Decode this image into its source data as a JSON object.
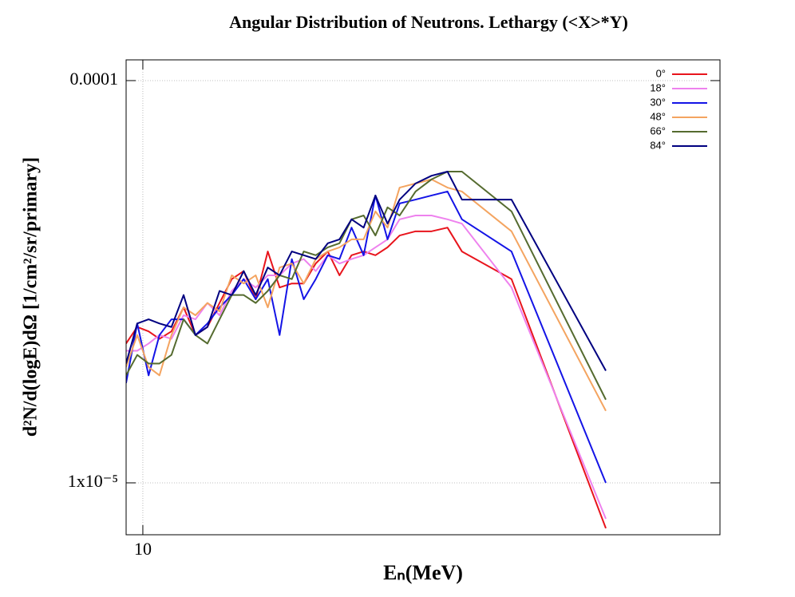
{
  "chart_data": {
    "type": "line",
    "title": "Angular Distribution of Neutrons. Lethargy (<X>*Y)",
    "xlabel": "Eₙ(MeV)",
    "ylabel": "d²N/d(logE)dΩ [1/cm²/sr/primary]",
    "xscale": "log",
    "yscale": "log",
    "grid": true,
    "legend": "upper right",
    "xlim": [
      9.66,
      33.0
    ],
    "ylim": [
      7.43e-06,
      0.0001126
    ],
    "xticks": [
      10
    ],
    "yticks": [
      {
        "value": 1e-05,
        "label": "1x10⁻⁵"
      },
      {
        "value": 0.0001,
        "label": "0.0001"
      }
    ],
    "x": [
      9.659,
      9.885,
      10.12,
      10.35,
      10.61,
      10.88,
      11.15,
      11.43,
      11.72,
      12.02,
      12.32,
      12.63,
      12.95,
      13.27,
      13.61,
      13.95,
      14.3,
      14.66,
      15.02,
      15.4,
      15.79,
      16.18,
      16.59,
      17.01,
      17.58,
      18.17,
      18.78,
      19.35,
      21.44,
      26.06
    ],
    "series": [
      {
        "name": "0°",
        "color": "#e8141c",
        "values": [
          2.22e-05,
          2.44e-05,
          2.38e-05,
          2.28e-05,
          2.38e-05,
          2.73e-05,
          2.33e-05,
          2.44e-05,
          2.8e-05,
          3.21e-05,
          3.36e-05,
          2.86e-05,
          3.76e-05,
          3.06e-05,
          3.13e-05,
          3.13e-05,
          3.51e-05,
          3.76e-05,
          3.28e-05,
          3.68e-05,
          3.76e-05,
          3.68e-05,
          3.85e-05,
          4.12e-05,
          4.22e-05,
          4.22e-05,
          4.31e-05,
          3.76e-05,
          3.21e-05,
          7.71e-06
        ]
      },
      {
        "name": "18°",
        "color": "#ee82ee",
        "values": [
          2.13e-05,
          2.13e-05,
          2.22e-05,
          2.33e-05,
          2.28e-05,
          2.61e-05,
          2.55e-05,
          2.8e-05,
          2.61e-05,
          3e-05,
          3.21e-05,
          3.06e-05,
          3.28e-05,
          3.28e-05,
          3.51e-05,
          3.6e-05,
          3.36e-05,
          3.68e-05,
          3.51e-05,
          3.6e-05,
          3.68e-05,
          3.85e-05,
          4.03e-05,
          4.52e-05,
          4.62e-05,
          4.62e-05,
          4.52e-05,
          4.41e-05,
          3.06e-05,
          8.14e-06
        ]
      },
      {
        "name": "30°",
        "color": "#1414e6",
        "values": [
          1.77e-05,
          2.49e-05,
          1.85e-05,
          2.33e-05,
          2.55e-05,
          2.55e-05,
          2.33e-05,
          2.49e-05,
          2.73e-05,
          2.93e-05,
          3.21e-05,
          2.86e-05,
          3.21e-05,
          2.33e-05,
          3.6e-05,
          2.86e-05,
          3.21e-05,
          3.68e-05,
          3.6e-05,
          4.31e-05,
          3.68e-05,
          5.18e-05,
          4.03e-05,
          4.95e-05,
          5.06e-05,
          5.18e-05,
          5.3e-05,
          4.52e-05,
          3.76e-05,
          1e-05
        ]
      },
      {
        "name": "48°",
        "color": "#f4a460",
        "values": [
          1.94e-05,
          2.33e-05,
          1.94e-05,
          1.85e-05,
          2.33e-05,
          2.73e-05,
          2.61e-05,
          2.8e-05,
          2.67e-05,
          3.28e-05,
          3.13e-05,
          3.28e-05,
          2.73e-05,
          3.43e-05,
          3.51e-05,
          3.13e-05,
          3.6e-05,
          3.76e-05,
          3.85e-05,
          4.03e-05,
          4.03e-05,
          4.73e-05,
          4.31e-05,
          5.42e-05,
          5.55e-05,
          5.68e-05,
          5.42e-05,
          5.3e-05,
          4.22e-05,
          1.51e-05
        ]
      },
      {
        "name": "66°",
        "color": "#556b2f",
        "values": [
          1.85e-05,
          2.08e-05,
          1.98e-05,
          1.98e-05,
          2.08e-05,
          2.55e-05,
          2.33e-05,
          2.22e-05,
          2.55e-05,
          2.93e-05,
          2.93e-05,
          2.8e-05,
          3e-05,
          3.28e-05,
          3.21e-05,
          3.76e-05,
          3.68e-05,
          3.85e-05,
          3.94e-05,
          4.52e-05,
          4.62e-05,
          4.12e-05,
          4.84e-05,
          4.62e-05,
          5.3e-05,
          5.68e-05,
          5.94e-05,
          5.94e-05,
          4.73e-05,
          1.61e-05
        ]
      },
      {
        "name": "84°",
        "color": "#000080",
        "values": [
          1.98e-05,
          2.49e-05,
          2.55e-05,
          2.49e-05,
          2.44e-05,
          2.93e-05,
          2.33e-05,
          2.44e-05,
          3e-05,
          2.93e-05,
          3.36e-05,
          2.93e-05,
          3.43e-05,
          3.28e-05,
          3.76e-05,
          3.68e-05,
          3.6e-05,
          3.94e-05,
          4.03e-05,
          4.52e-05,
          4.31e-05,
          5.18e-05,
          4.41e-05,
          5.06e-05,
          5.55e-05,
          5.8e-05,
          5.94e-05,
          5.06e-05,
          5.06e-05,
          1.9e-05
        ]
      }
    ]
  }
}
